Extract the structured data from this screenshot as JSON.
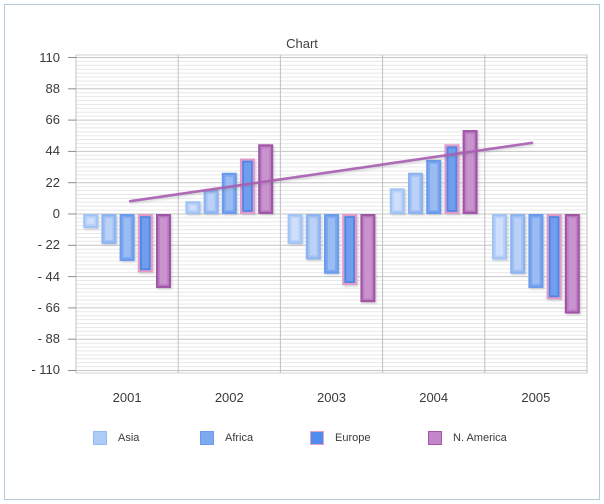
{
  "chart_data": {
    "type": "bar",
    "title": "Chart",
    "categories": [
      "2001",
      "2002",
      "2003",
      "2004",
      "2005"
    ],
    "series": [
      {
        "name": "Asia",
        "fill": "#b8d1f8",
        "border": "#a2c4f5",
        "highlight": "#d8e4fb",
        "values": [
          -10,
          9,
          -21,
          18,
          -32
        ]
      },
      {
        "name": "Asia",
        "fill": "#a3c2f3",
        "border": "#8db3f0",
        "highlight": "#c4d7f8",
        "values": [
          -21,
          17,
          -32,
          29,
          -42
        ]
      },
      {
        "name": "Africa",
        "fill": "#7ea9ee",
        "border": "#6a9bec",
        "highlight": "#a8c5f4",
        "values": [
          -33,
          29,
          -42,
          38,
          -52
        ]
      },
      {
        "name": "Europe",
        "fill": "#4e86e8",
        "border": "#e09bc9",
        "highlight": "#7ea8ef",
        "values": [
          -41,
          39,
          -50,
          49,
          -60
        ]
      },
      {
        "name": "N. America",
        "fill": "#bc80c4",
        "border": "#a254a5",
        "highlight": "#cf9cd3",
        "values": [
          -52,
          49,
          -62,
          59,
          -70
        ]
      }
    ],
    "trendline": {
      "color": "#a95fb2",
      "start": {
        "x": 0.53,
        "value": 9
      },
      "end": {
        "x": 4.46,
        "value": 50
      }
    },
    "y_axis": {
      "min": -110,
      "max": 110,
      "major_step": 22,
      "minor_step": 2.75,
      "tick_labels": [
        "110",
        "88",
        "66",
        "44",
        "22",
        "0",
        "- 22",
        "- 44",
        "- 66",
        "- 88",
        "- 110"
      ]
    },
    "grid": "on",
    "legend_position": "bottom"
  },
  "legend": {
    "items": [
      {
        "label": "Asia",
        "fill": "#aecbf5",
        "border": "#93bcf2"
      },
      {
        "label": "Africa",
        "fill": "#7ea9ee",
        "border": "#699af0"
      },
      {
        "label": "Europe",
        "fill": "#4e8cee",
        "border": "#e49fc8"
      },
      {
        "label": "N. America",
        "fill": "#c386c8",
        "border": "#a557a6"
      }
    ]
  }
}
